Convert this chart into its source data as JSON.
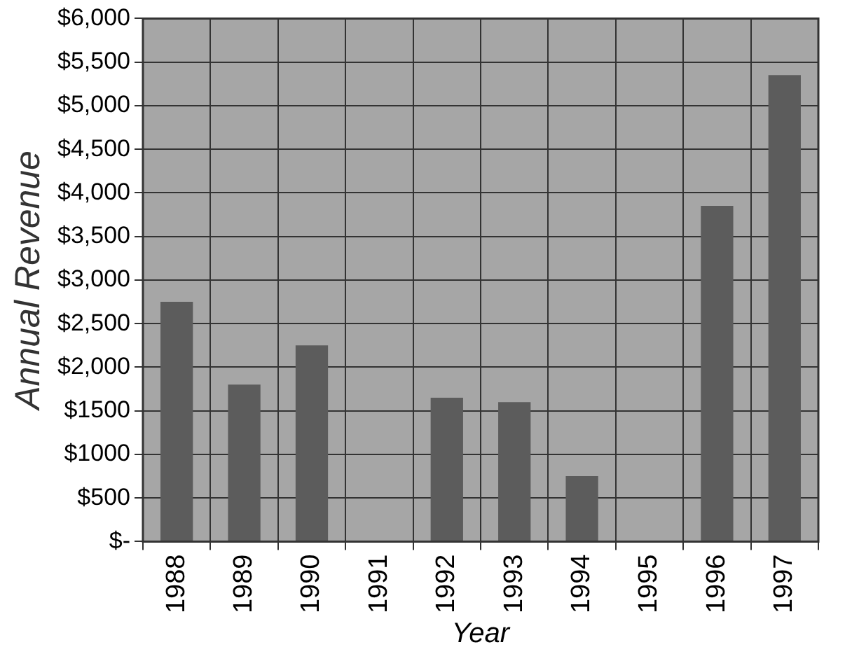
{
  "chart_data": {
    "type": "bar",
    "xlabel": "Year",
    "ylabel": "Annual Revenue",
    "categories": [
      "1988",
      "1989",
      "1990",
      "1991",
      "1992",
      "1993",
      "1994",
      "1995",
      "1996",
      "1997"
    ],
    "values": [
      2750,
      1800,
      2250,
      0,
      1650,
      1600,
      750,
      0,
      3850,
      5350
    ],
    "color": "#5c5c5c",
    "ylim": [
      0,
      6000
    ],
    "yticks": [
      {
        "value": 0,
        "label": "$-"
      },
      {
        "value": 500,
        "label": "$500"
      },
      {
        "value": 1000,
        "label": "$1000"
      },
      {
        "value": 1500,
        "label": "$1500"
      },
      {
        "value": 2000,
        "label": "$2,000"
      },
      {
        "value": 2500,
        "label": "$2,500"
      },
      {
        "value": 3000,
        "label": "$3,000"
      },
      {
        "value": 3500,
        "label": "$3,500"
      },
      {
        "value": 4000,
        "label": "$4,000"
      },
      {
        "value": 4500,
        "label": "$4,500"
      },
      {
        "value": 5000,
        "label": "$5,000"
      },
      {
        "value": 5500,
        "label": "$5,500"
      },
      {
        "value": 6000,
        "label": "$6,000"
      }
    ],
    "grid": true
  }
}
